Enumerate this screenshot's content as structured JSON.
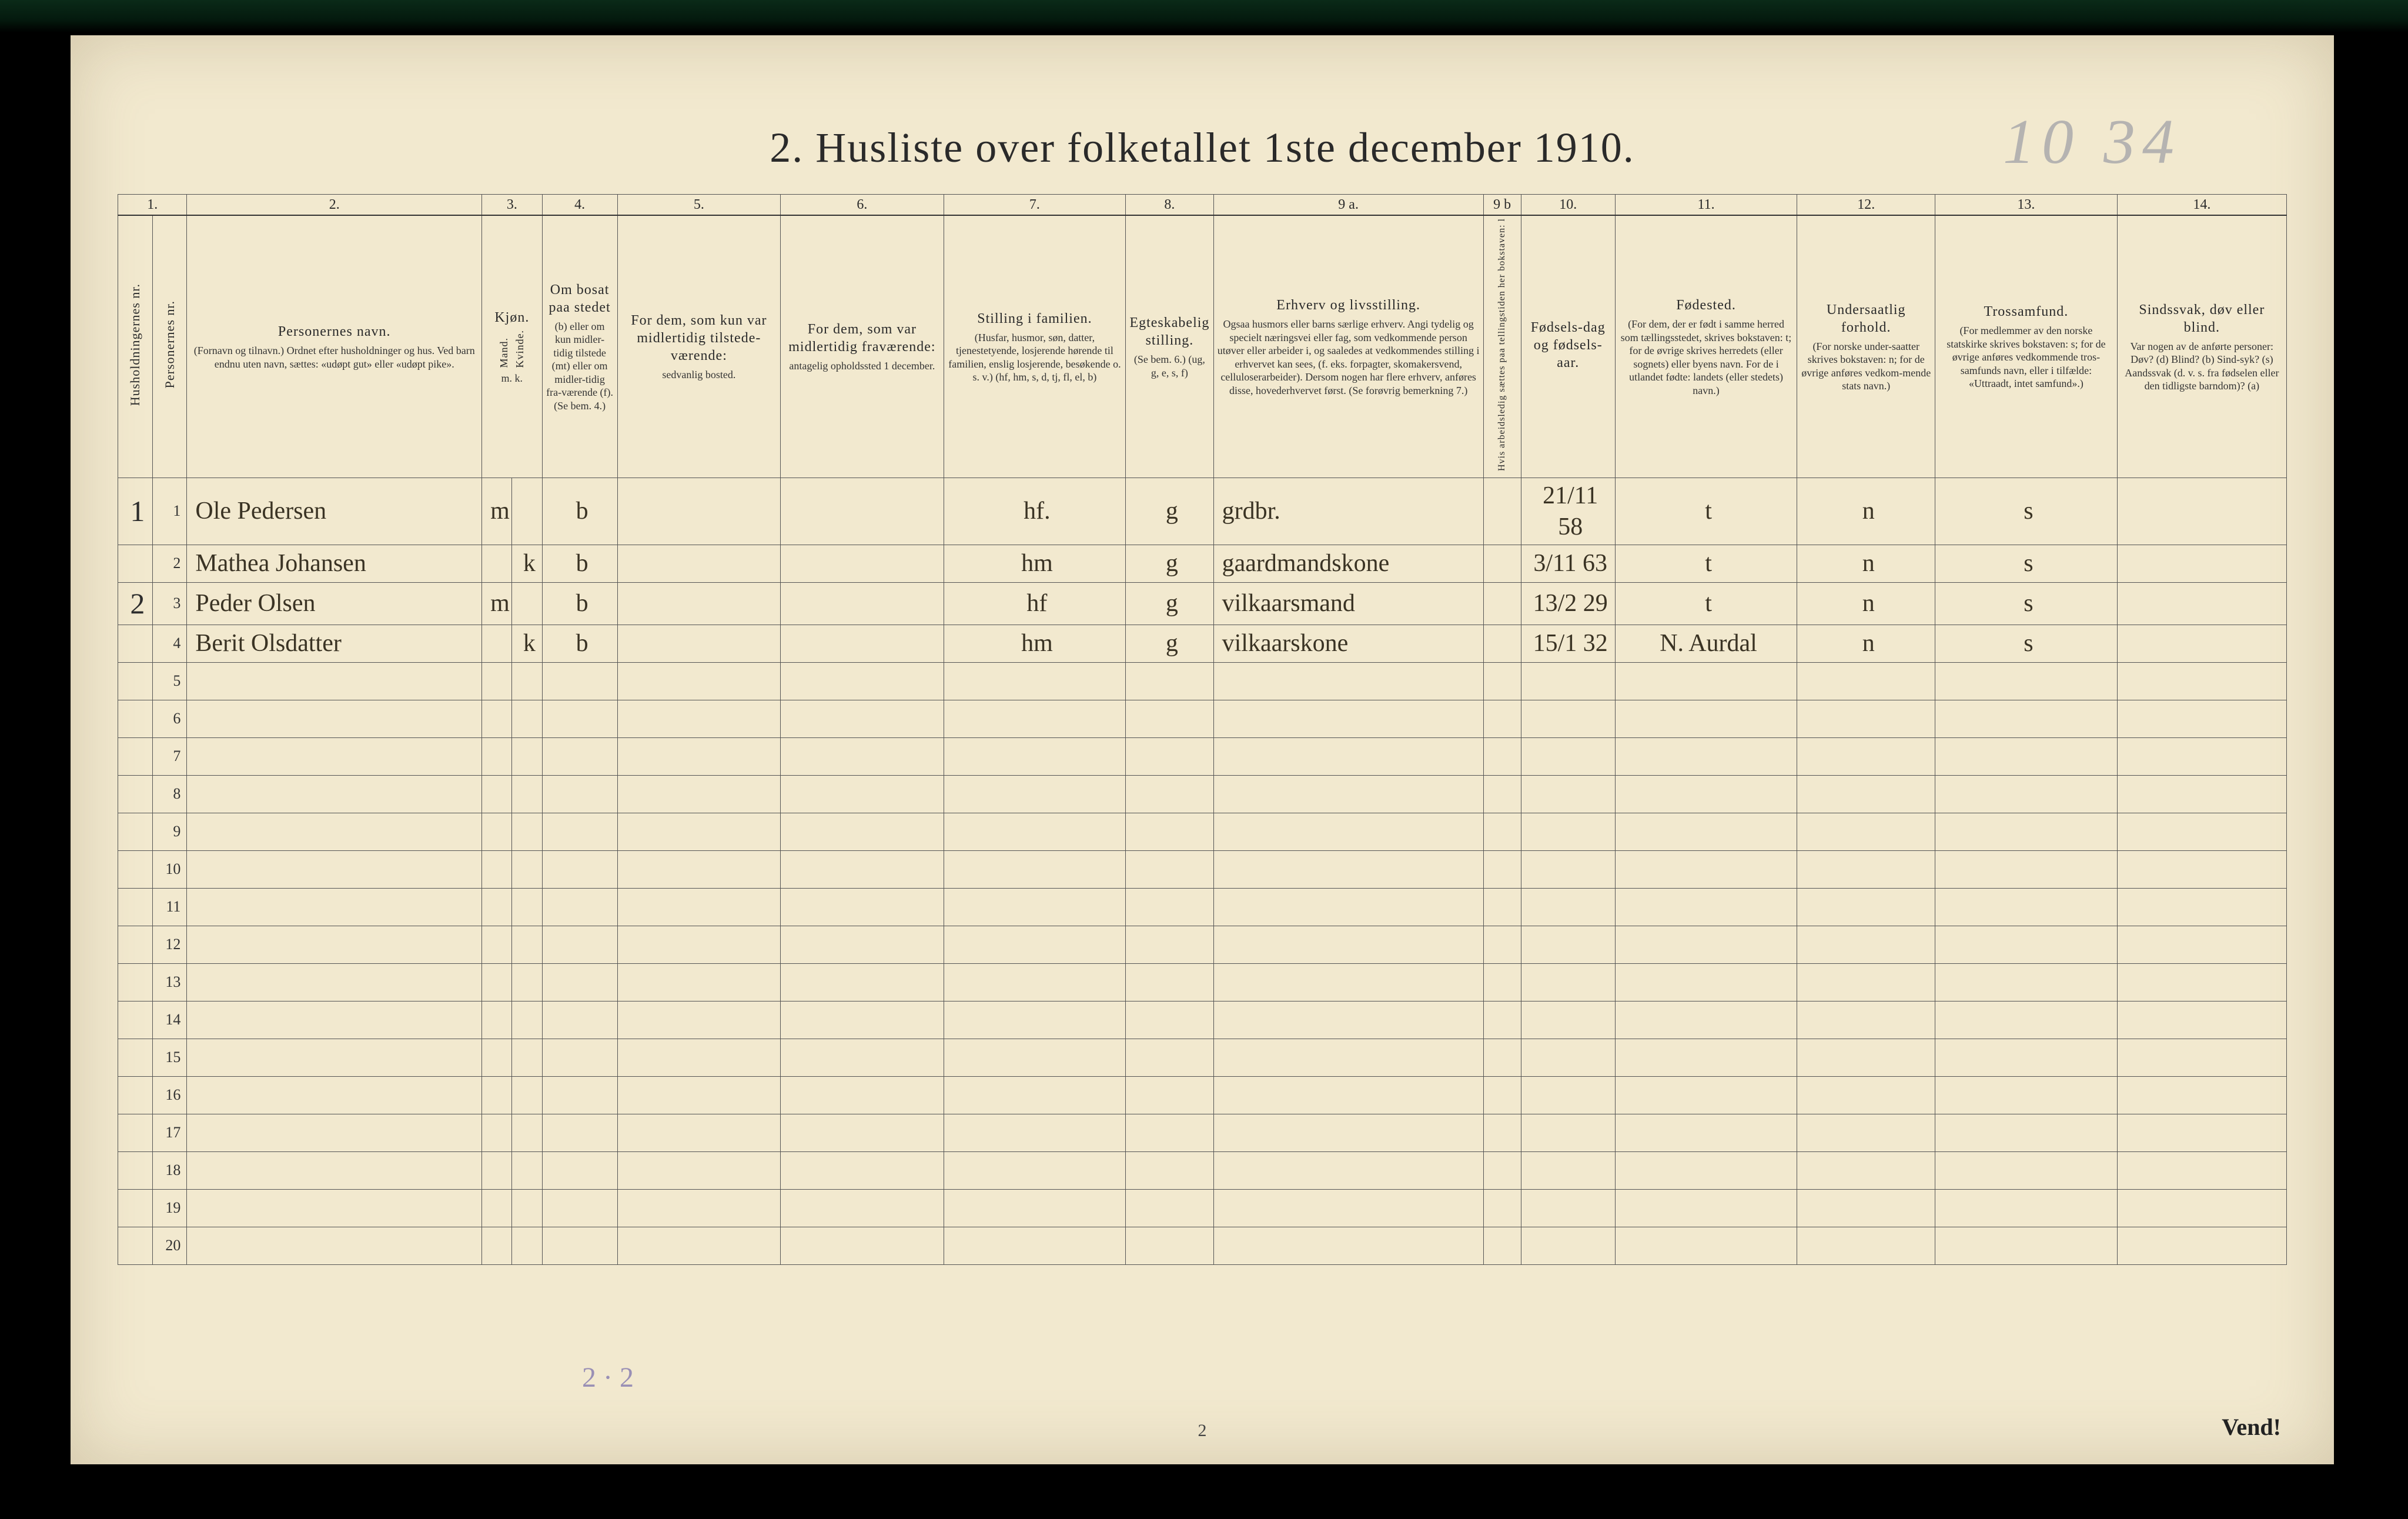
{
  "page": {
    "title": "2.  Husliste over folketallet 1ste december 1910.",
    "handwritten_top_right": "10 34",
    "bottom_page_number": "2",
    "vend": "Vend!",
    "footer_pencil": "2 · 2"
  },
  "colors": {
    "paper": "#f2e9cf",
    "ink": "#2a2a2a",
    "handwriting": "#3a3324",
    "pencil_blue": "#50469f",
    "border": "#555555",
    "film": "#041a0e"
  },
  "columns": {
    "numbers": [
      "1.",
      "",
      "2.",
      "3.",
      "",
      "4.",
      "5.",
      "6.",
      "7.",
      "8.",
      "9 a.",
      "9 b",
      "10.",
      "11.",
      "12.",
      "13.",
      "14."
    ],
    "c1_vert": "Husholdningernes nr.",
    "c1b_vert": "Personernes nr.",
    "c2": {
      "main": "Personernes navn.",
      "sub": "(Fornavn og tilnavn.)\nOrdnet efter husholdninger og hus.\nVed barn endnu uten navn, sættes: «udøpt gut» eller «udøpt pike»."
    },
    "c3": {
      "main": "Kjøn.",
      "sub_m": "Mand.",
      "sub_k": "Kvinde.",
      "foot": "m.  k."
    },
    "c4": {
      "main": "Om bosat paa stedet",
      "sub": "(b) eller om kun midler-tidig tilstede (mt) eller om midler-tidig fra-værende (f).\n(Se bem. 4.)"
    },
    "c5": {
      "main": "For dem, som kun var midlertidig tilstede-værende:",
      "sub": "sedvanlig bosted."
    },
    "c6": {
      "main": "For dem, som var midlertidig fraværende:",
      "sub": "antagelig opholdssted 1 december."
    },
    "c7": {
      "main": "Stilling i familien.",
      "sub": "(Husfar, husmor, søn, datter, tjenestetyende, losjerende hørende til familien, enslig losjerende, besøkende o. s. v.)\n(hf, hm, s, d, tj, fl, el, b)"
    },
    "c8": {
      "main": "Egteskabelig stilling.",
      "sub": "(Se bem. 6.)\n(ug, g, e, s, f)"
    },
    "c9a": {
      "main": "Erhverv og livsstilling.",
      "sub": "Ogsaa husmors eller barns særlige erhverv.\nAngi tydelig og specielt næringsvei eller fag, som vedkommende person utøver eller arbeider i, og saaledes at vedkommendes stilling i erhvervet kan sees, (f. eks. forpagter, skomakersvend, celluloserarbeider). Dersom nogen har flere erhverv, anføres disse, hovederhvervet først.\n(Se forøvrig bemerkning 7.)"
    },
    "c9b_vert": "Hvis arbeidsledig sættes paa tellingstiden her bokstaven: l",
    "c10": {
      "main": "Fødsels-dag og fødsels-aar."
    },
    "c11": {
      "main": "Fødested.",
      "sub": "(For dem, der er født i samme herred som tællingsstedet, skrives bokstaven: t; for de øvrige skrives herredets (eller sognets) eller byens navn.\nFor de i utlandet fødte: landets (eller stedets) navn.)"
    },
    "c12": {
      "main": "Undersaatlig forhold.",
      "sub": "(For norske under-saatter skrives bokstaven: n; for de øvrige anføres vedkom-mende stats navn.)"
    },
    "c13": {
      "main": "Trossamfund.",
      "sub": "(For medlemmer av den norske statskirke skrives bokstaven: s; for de øvrige anføres vedkommende tros-samfunds navn, eller i tilfælde: «Uttraadt, intet samfund».)"
    },
    "c14": {
      "main": "Sindssvak, døv eller blind.",
      "sub": "Var nogen av de anførte personer:\nDøv?        (d)\nBlind?      (b)\nSind-syk?  (s)\nAandssvak (d. v. s. fra fødselen eller den tidligste barndom)?  (a)"
    }
  },
  "rows": [
    {
      "hh": "1",
      "n": 1,
      "name": "Ole Pedersen",
      "sex": "m",
      "bosat": "b",
      "c7": "hf.",
      "c8": "g",
      "c9a": "grdbr.",
      "c10": "21/11 58",
      "c11": "t",
      "c12": "n",
      "c13": "s"
    },
    {
      "hh": "",
      "n": 2,
      "name": "Mathea Johansen",
      "sex": "k",
      "bosat": "b",
      "c7": "hm",
      "c8": "g",
      "c9a": "gaardmandskone",
      "c10": "3/11 63",
      "c11": "t",
      "c12": "n",
      "c13": "s"
    },
    {
      "hh": "2",
      "n": 3,
      "name": "Peder Olsen",
      "sex": "m",
      "bosat": "b",
      "c7": "hf",
      "c8": "g",
      "c9a": "vilkaarsmand",
      "c10": "13/2 29",
      "c11": "t",
      "c12": "n",
      "c13": "s"
    },
    {
      "hh": "",
      "n": 4,
      "name": "Berit Olsdatter",
      "sex": "k",
      "bosat": "b",
      "c7": "hm",
      "c8": "g",
      "c9a": "vilkaarskone",
      "c10": "15/1 32",
      "c11": "N. Aurdal",
      "c12": "n",
      "c13": "s"
    }
  ],
  "empty_rows_from": 5,
  "empty_rows_to": 20
}
